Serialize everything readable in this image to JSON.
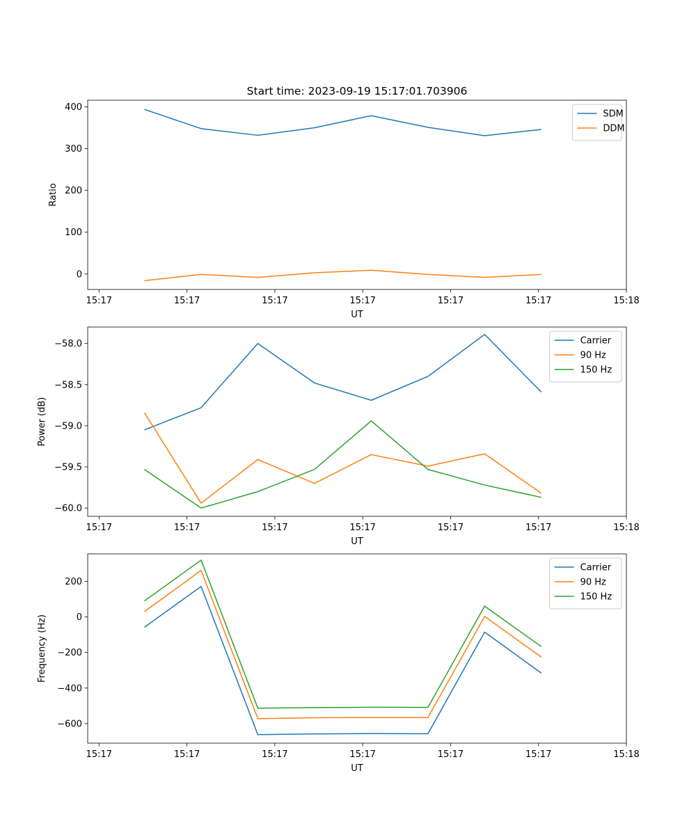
{
  "title": "Start time: 2023-09-19 15:17:01.703906",
  "colors": {
    "blue": "#1f77b4",
    "orange": "#ff7f0e",
    "green": "#2ca02c"
  },
  "chart_data": [
    {
      "type": "line",
      "xlabel": "UT",
      "ylabel": "Ratio",
      "xlim": [
        0,
        9.5
      ],
      "ylim": [
        -37,
        416
      ],
      "x": [
        1,
        2,
        3,
        4,
        5,
        6,
        7,
        8
      ],
      "xticks": [
        0.2,
        1.75,
        3.3,
        4.85,
        6.4,
        7.95,
        9.5
      ],
      "xtick_labels": [
        "15:17",
        "15:17",
        "15:17",
        "15:17",
        "15:17",
        "15:17",
        "15:18"
      ],
      "yticks": [
        0,
        100,
        200,
        300,
        400
      ],
      "ytick_labels": [
        "0",
        "100",
        "200",
        "300",
        "400"
      ],
      "legend": "top-right",
      "series": [
        {
          "name": "SDM",
          "color": "#1f77b4",
          "values": [
            394,
            348,
            332,
            350,
            379,
            351,
            331,
            346
          ]
        },
        {
          "name": "DDM",
          "color": "#ff7f0e",
          "values": [
            -16,
            -1,
            -8,
            3,
            9,
            -1,
            -8,
            -1
          ]
        }
      ]
    },
    {
      "type": "line",
      "xlabel": "UT",
      "ylabel": "Power (dB)",
      "xlim": [
        0,
        9.5
      ],
      "ylim": [
        -60.1,
        -57.8
      ],
      "x": [
        1,
        2,
        3,
        4,
        5,
        6,
        7,
        8
      ],
      "xticks": [
        0.2,
        1.75,
        3.3,
        4.85,
        6.4,
        7.95,
        9.5
      ],
      "xtick_labels": [
        "15:17",
        "15:17",
        "15:17",
        "15:17",
        "15:17",
        "15:17",
        "15:18"
      ],
      "yticks": [
        -60.0,
        -59.5,
        -59.0,
        -58.5,
        -58.0
      ],
      "ytick_labels": [
        "−60.0",
        "−59.5",
        "−59.0",
        "−58.5",
        "−58.0"
      ],
      "legend": "top-right",
      "series": [
        {
          "name": "Carrier",
          "color": "#1f77b4",
          "values": [
            -59.05,
            -58.78,
            -58.0,
            -58.48,
            -58.69,
            -58.4,
            -57.89,
            -58.59
          ]
        },
        {
          "name": "90 Hz",
          "color": "#ff7f0e",
          "values": [
            -58.84,
            -59.94,
            -59.41,
            -59.7,
            -59.35,
            -59.49,
            -59.34,
            -59.82
          ]
        },
        {
          "name": "150 Hz",
          "color": "#2ca02c",
          "values": [
            -59.53,
            -60.0,
            -59.8,
            -59.53,
            -58.94,
            -59.53,
            -59.72,
            -59.87
          ]
        }
      ]
    },
    {
      "type": "line",
      "xlabel": "UT",
      "ylabel": "Frequency (Hz)",
      "xlim": [
        0,
        9.5
      ],
      "ylim": [
        -710,
        355
      ],
      "x": [
        1,
        2,
        3,
        4,
        5,
        6,
        7,
        8
      ],
      "xticks": [
        0.2,
        1.75,
        3.3,
        4.85,
        6.4,
        7.95,
        9.5
      ],
      "xtick_labels": [
        "15:17",
        "15:17",
        "15:17",
        "15:17",
        "15:17",
        "15:17",
        "15:18"
      ],
      "yticks": [
        -600,
        -400,
        -200,
        0,
        200
      ],
      "ytick_labels": [
        "−600",
        "−400",
        "−200",
        "0",
        "200"
      ],
      "legend": "top-right",
      "series": [
        {
          "name": "Carrier",
          "color": "#1f77b4",
          "values": [
            -58,
            172,
            -662,
            -658,
            -656,
            -657,
            -85,
            -316
          ]
        },
        {
          "name": "90 Hz",
          "color": "#ff7f0e",
          "values": [
            30,
            262,
            -572,
            -567,
            -566,
            -566,
            3,
            -226
          ]
        },
        {
          "name": "150 Hz",
          "color": "#2ca02c",
          "values": [
            90,
            320,
            -513,
            -510,
            -508,
            -509,
            61,
            -167
          ]
        }
      ]
    }
  ]
}
